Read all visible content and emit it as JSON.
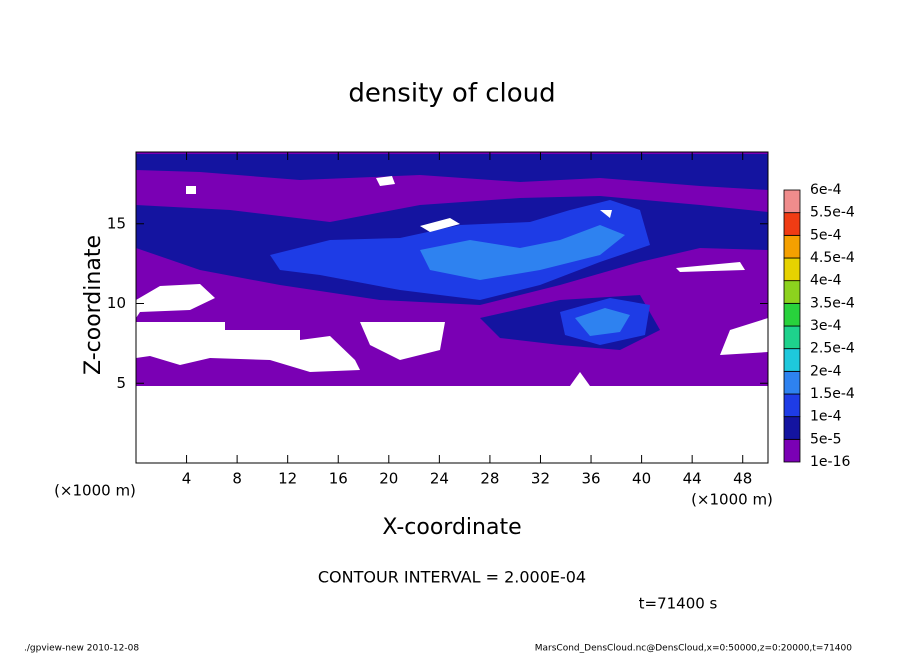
{
  "chart_data": {
    "type": "contour",
    "title": "density of cloud",
    "x_label": "X-coordinate",
    "y_label": "Z-coordinate",
    "x_unit": "(×1000 m)",
    "y_unit": "(×1000 m)",
    "xlim": [
      0,
      50
    ],
    "ylim": [
      0,
      19.5
    ],
    "xticks": [
      4,
      8,
      12,
      16,
      20,
      24,
      28,
      32,
      36,
      40,
      44,
      48
    ],
    "yticks": [
      5,
      10,
      15
    ],
    "colorbar": {
      "ticks": [
        {
          "value": 1e-16,
          "label": "1e-16"
        },
        {
          "value": 5e-05,
          "label": "5e-5"
        },
        {
          "value": 0.0001,
          "label": "1e-4"
        },
        {
          "value": 0.00015,
          "label": "1.5e-4"
        },
        {
          "value": 0.0002,
          "label": "2e-4"
        },
        {
          "value": 0.00025,
          "label": "2.5e-4"
        },
        {
          "value": 0.0003,
          "label": "3e-4"
        },
        {
          "value": 0.00035,
          "label": "3.5e-4"
        },
        {
          "value": 0.0004,
          "label": "4e-4"
        },
        {
          "value": 0.00045,
          "label": "4.5e-4"
        },
        {
          "value": 0.0005,
          "label": "5e-4"
        },
        {
          "value": 0.00055,
          "label": "5.5e-4"
        },
        {
          "value": 0.0006,
          "label": "6e-4"
        }
      ],
      "colors": [
        "#7a00b4",
        "#1414a0",
        "#1e3ce6",
        "#2e82f0",
        "#1ec8dc",
        "#1ed28c",
        "#28d23c",
        "#8cd21e",
        "#e6d200",
        "#f5a000",
        "#f03c14",
        "#f08c8c"
      ]
    },
    "contour_interval": "CONTOUR INTERVAL = 2.000E-04",
    "time_label": "t=71400 s",
    "footer_left": "./gpview-new  2010-12-08",
    "footer_right": "MarsCond_DensCloud.nc@DensCloud,x=0:50000,z=0:20000,t=71400"
  }
}
